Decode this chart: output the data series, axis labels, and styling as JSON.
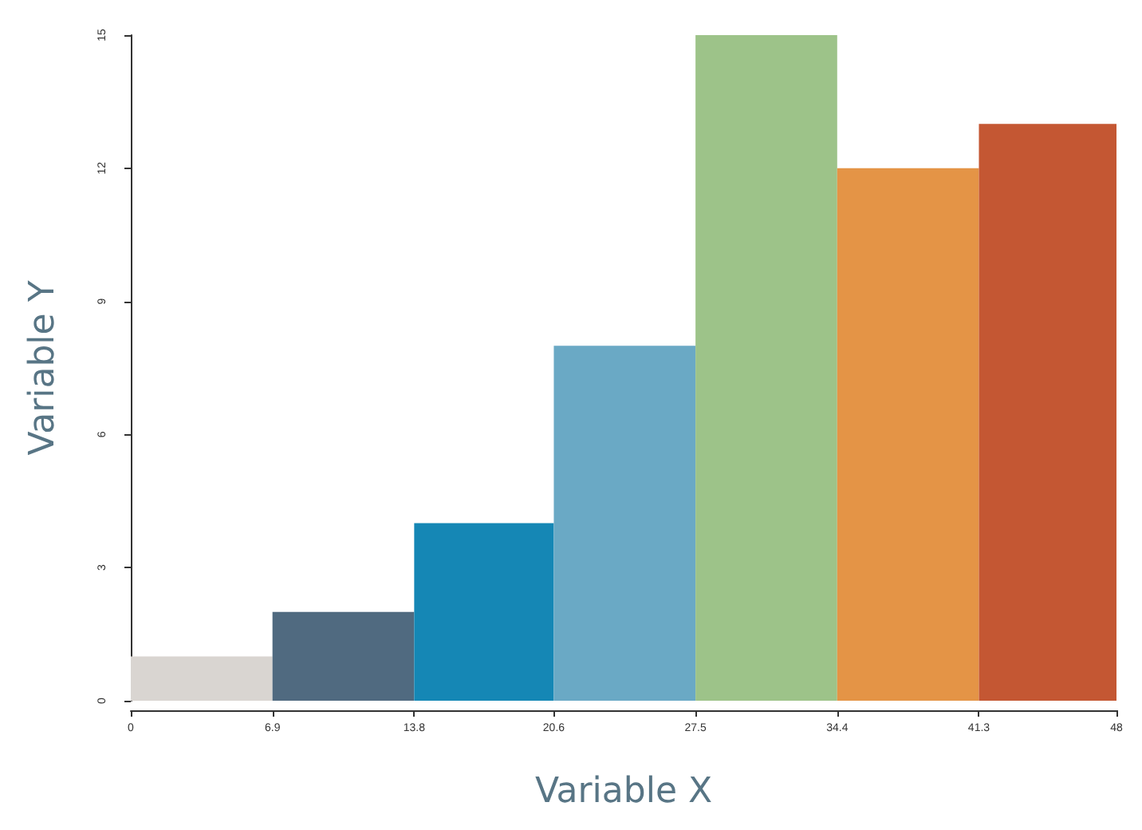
{
  "chart_data": {
    "type": "histogram",
    "xlabel": "Variable X",
    "ylabel": "Variable Y",
    "bins": [
      0,
      6.9,
      13.8,
      20.6,
      27.5,
      34.4,
      41.3,
      48
    ],
    "values": [
      1,
      2,
      4,
      8,
      15,
      12,
      13
    ],
    "colors": [
      "#d9d5d1",
      "#506a80",
      "#1587b5",
      "#6aa9c5",
      "#9dc389",
      "#e49446",
      "#c45733"
    ],
    "xlim": [
      0,
      48
    ],
    "xticks": [
      0,
      6.9,
      13.8,
      20.6,
      27.5,
      34.4,
      41.3,
      48
    ],
    "ylim": [
      0,
      15
    ],
    "yticks": [
      0,
      3,
      6,
      9,
      12,
      15
    ],
    "grid": false
  }
}
